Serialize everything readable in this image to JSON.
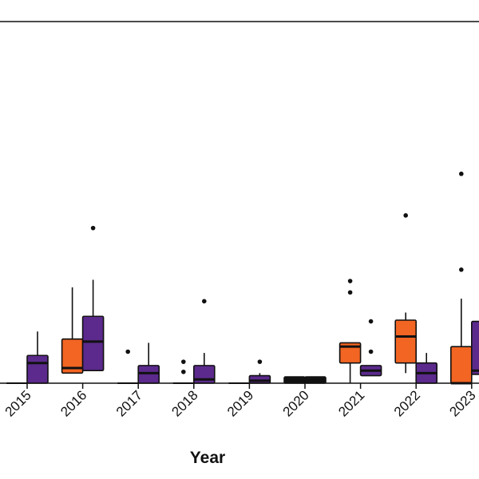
{
  "chart_data": {
    "type": "box",
    "xlabel": "Year",
    "ylabel": "",
    "title": "",
    "ylim": [
      0,
      30
    ],
    "grid": false,
    "legend": "none",
    "categories": [
      "2015",
      "2016",
      "2017",
      "2018",
      "2019",
      "2020",
      "2021",
      "2022",
      "2023"
    ],
    "colors": {
      "orange": "#f26522",
      "purple": "#5b2a8c",
      "black": "#111111"
    },
    "series": [
      {
        "color_key": "orange",
        "boxes": [
          {
            "category": "2015",
            "min": 0,
            "q1": 0,
            "median": 0,
            "q3": 0,
            "max": 0,
            "outliers": []
          },
          {
            "category": "2016",
            "min": 0.8,
            "q1": 0.8,
            "median": 1.2,
            "q3": 3.5,
            "max": 7.6,
            "outliers": []
          },
          {
            "category": "2017",
            "min": 0,
            "q1": 0,
            "median": 0,
            "q3": 0,
            "max": 0,
            "outliers": [
              2.5
            ]
          },
          {
            "category": "2018",
            "min": 0,
            "q1": 0,
            "median": 0,
            "q3": 0,
            "max": 0,
            "outliers": [
              1.7,
              0.9
            ]
          },
          {
            "category": "2019",
            "min": 0,
            "q1": 0,
            "median": 0,
            "q3": 0,
            "max": 0,
            "outliers": []
          },
          {
            "category": "2020",
            "min": 0,
            "q1": 0,
            "median": 0.3,
            "q3": 0.5,
            "max": 0.5,
            "outliers": []
          },
          {
            "category": "2021",
            "min": 0,
            "q1": 1.6,
            "median": 2.9,
            "q3": 3.2,
            "max": 3.2,
            "outliers": [
              8.1,
              7.2
            ]
          },
          {
            "category": "2022",
            "min": 0.8,
            "q1": 1.6,
            "median": 3.7,
            "q3": 5.0,
            "max": 5.6,
            "outliers": [
              13.3
            ]
          },
          {
            "category": "2023",
            "min": 0,
            "q1": 0,
            "median": 0,
            "q3": 2.9,
            "max": 6.7,
            "outliers": [
              16.6,
              9.0
            ]
          }
        ]
      },
      {
        "color_key": "purple",
        "boxes": [
          {
            "category": "2015",
            "min": 0,
            "q1": 0,
            "median": 1.6,
            "q3": 2.2,
            "max": 4.1,
            "outliers": []
          },
          {
            "category": "2016",
            "min": 1.0,
            "q1": 1.0,
            "median": 3.3,
            "q3": 5.3,
            "max": 8.2,
            "outliers": [
              12.3
            ]
          },
          {
            "category": "2017",
            "min": 0,
            "q1": 0,
            "median": 0.8,
            "q3": 1.4,
            "max": 3.2,
            "outliers": []
          },
          {
            "category": "2018",
            "min": 0,
            "q1": 0,
            "median": 0.3,
            "q3": 1.4,
            "max": 2.4,
            "outliers": [
              6.5
            ]
          },
          {
            "category": "2019",
            "min": 0,
            "q1": 0,
            "median": 0.2,
            "q3": 0.6,
            "max": 0.8,
            "outliers": [
              1.7
            ]
          },
          {
            "category": "2020",
            "min": 0,
            "q1": 0,
            "median": 0.2,
            "q3": 0.5,
            "max": 0.5,
            "outliers": []
          },
          {
            "category": "2021",
            "min": 0.6,
            "q1": 0.6,
            "median": 1.0,
            "q3": 1.4,
            "max": 1.4,
            "outliers": [
              4.9,
              2.5
            ]
          },
          {
            "category": "2022",
            "min": 0,
            "q1": 0,
            "median": 0.8,
            "q3": 1.6,
            "max": 2.4,
            "outliers": []
          },
          {
            "category": "2023",
            "min": 0.7,
            "q1": 0.7,
            "median": 1.0,
            "q3": 4.9,
            "max": 4.9,
            "outliers": []
          }
        ]
      }
    ]
  }
}
